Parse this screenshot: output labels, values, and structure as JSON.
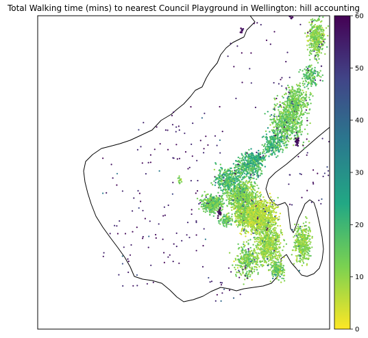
{
  "chart_data": {
    "type": "scatter",
    "title": "Total Walking time (mins) to nearest Council Playground in Wellington: hill accounting",
    "xlabel": "",
    "ylabel": "",
    "axis_ticks_visible": false,
    "grid": false,
    "legend": "none",
    "colorbar": {
      "position": "right",
      "colormap": "viridis-reversed",
      "min": 0,
      "max": 60,
      "ticks": [
        0,
        10,
        20,
        30,
        40,
        50,
        60
      ],
      "colors": [
        "#fde725",
        "#7ad151",
        "#22a884",
        "#2a788e",
        "#414487",
        "#440154"
      ]
    },
    "boundary_color": "#000000",
    "values_description": "Thousands of dots; each dot is a residential location coloured by walking time in minutes, in the range 0-60. Most values fall between 0 and 25 in the dense city areas, outliers reach 60."
  }
}
